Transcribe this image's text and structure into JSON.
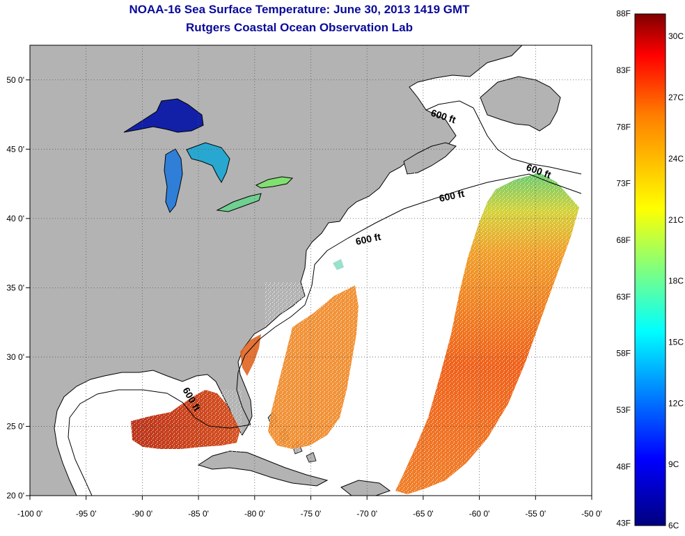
{
  "title": "NOAA-16 Sea Surface Temperature:  June 30, 2013 1419 GMT",
  "subtitle": "Rutgers Coastal Ocean Observation Lab",
  "map": {
    "lon_range": [
      -100,
      -50
    ],
    "lat_range": [
      20,
      52.5
    ],
    "grid": true,
    "lon_ticks": [
      -100,
      -95,
      -90,
      -85,
      -80,
      -75,
      -70,
      -65,
      -60,
      -55,
      -50
    ],
    "lat_ticks": [
      20,
      25,
      30,
      35,
      40,
      45,
      50
    ],
    "lon_labels": [
      "-100 0'",
      "-95 0'",
      "-90 0'",
      "-85 0'",
      "-80 0'",
      "-75 0'",
      "-70 0'",
      "-65 0'",
      "-60 0'",
      "-55 0'",
      "-50 0'"
    ],
    "lat_labels": [
      "20 0'",
      "25 0'",
      "30 0'",
      "35 0'",
      "40 0'",
      "45 0'",
      "50 0'"
    ],
    "contour_label": "600 ft",
    "colors": {
      "land": "#b3b3b3",
      "ocean": "#ffffff",
      "coast": "#000000",
      "grid": "#555555"
    }
  },
  "colorbar": {
    "fahrenheit_labels": [
      "88F",
      "83F",
      "78F",
      "73F",
      "68F",
      "63F",
      "58F",
      "53F",
      "48F",
      "43F"
    ],
    "celsius_labels": [
      "30C",
      "27C",
      "24C",
      "21C",
      "18C",
      "15C",
      "12C",
      "9C",
      "6C"
    ],
    "range_celsius": [
      6,
      31.1
    ],
    "stops": [
      "#00007f",
      "#0000ff",
      "#00ffff",
      "#ffff00",
      "#ff8000",
      "#ff0000",
      "#7f0000"
    ]
  }
}
